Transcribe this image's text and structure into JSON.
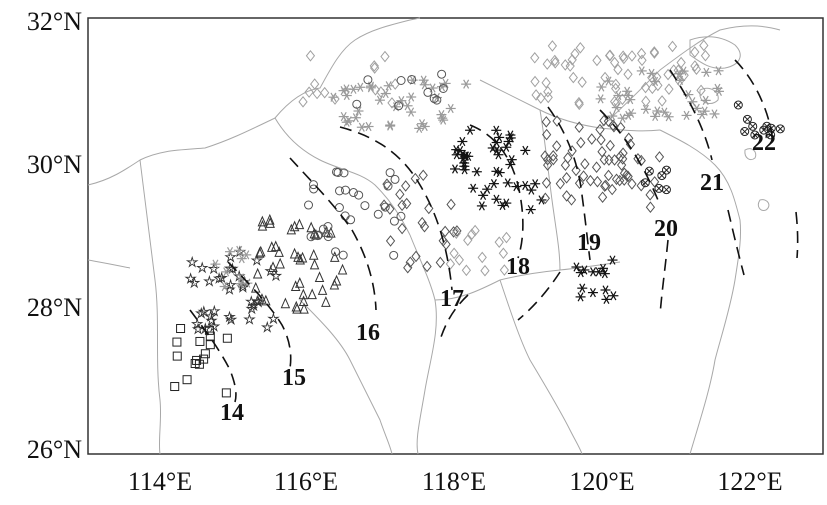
{
  "map": {
    "lat_labels": [
      "32°N",
      "30°N",
      "28°N",
      "26°N"
    ],
    "lon_labels": [
      "114°E",
      "116°E",
      "118°E",
      "120°E",
      "122°E"
    ],
    "isolines": [
      {
        "label": "14"
      },
      {
        "label": "15"
      },
      {
        "label": "16"
      },
      {
        "label": "17"
      },
      {
        "label": "18"
      },
      {
        "label": "19"
      },
      {
        "label": "20"
      },
      {
        "label": "21"
      },
      {
        "label": "22"
      }
    ],
    "marker_series": [
      {
        "symbol": "square",
        "color": "#222222"
      },
      {
        "symbol": "star",
        "color": "#333333"
      },
      {
        "symbol": "triangle",
        "color": "#333333"
      },
      {
        "symbol": "circle",
        "color": "#555555"
      },
      {
        "symbol": "diamond",
        "color": "#555555"
      },
      {
        "symbol": "asterisk",
        "color": "#111111"
      },
      {
        "symbol": "circled-x",
        "color": "#222222"
      },
      {
        "symbol": "gray-asterisk",
        "color": "#9a9a9a"
      },
      {
        "symbol": "gray-diamond",
        "color": "#a0a0a0"
      }
    ]
  }
}
